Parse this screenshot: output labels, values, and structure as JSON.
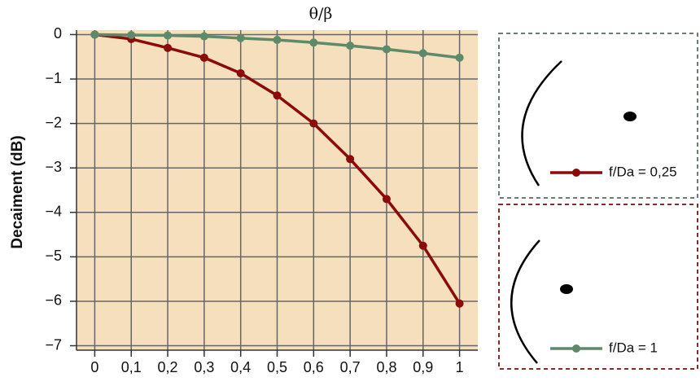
{
  "chart_data": {
    "type": "line",
    "title": "θ/β",
    "y_label": "Decaiment (dB)",
    "x": [
      0,
      0.1,
      0.2,
      0.3,
      0.4,
      0.5,
      0.6,
      0.7,
      0.8,
      0.9,
      1
    ],
    "series": [
      {
        "name": "f/Da = 0,25",
        "color": "#8b0a0a",
        "values": [
          0,
          -0.1,
          -0.3,
          -0.52,
          -0.87,
          -1.37,
          -2.0,
          -2.8,
          -3.7,
          -4.75,
          -6.05
        ]
      },
      {
        "name": "f/Da = 1",
        "color": "#5e8a6a",
        "values": [
          0,
          -0.01,
          -0.02,
          -0.04,
          -0.08,
          -0.12,
          -0.18,
          -0.25,
          -0.33,
          -0.42,
          -0.52
        ]
      }
    ],
    "xlim": [
      -0.05,
      1.05
    ],
    "ylim": [
      -7.1,
      0.1
    ],
    "xticks": [
      0,
      {
        "value": 0.1,
        "label": "0,1"
      },
      {
        "value": 0.2,
        "label": "0,2"
      },
      {
        "value": 0.3,
        "label": "0,3"
      },
      {
        "value": 0.4,
        "label": "0,4"
      },
      {
        "value": 0.5,
        "label": "0,5"
      },
      {
        "value": 0.6,
        "label": "0,6"
      },
      {
        "value": 0.7,
        "label": "0,7"
      },
      {
        "value": 0.8,
        "label": "0,8"
      },
      {
        "value": 0.9,
        "label": "0,9"
      },
      1
    ],
    "yticks": [
      0,
      {
        "value": -1,
        "label": "−1"
      },
      {
        "value": -2,
        "label": "−2"
      },
      {
        "value": -3,
        "label": "−3"
      },
      {
        "value": -4,
        "label": "−4"
      },
      {
        "value": -5,
        "label": "−5"
      },
      {
        "value": -6,
        "label": "−6"
      },
      {
        "value": -7,
        "label": "−7"
      }
    ],
    "grid": true,
    "background": "#f5dfbd"
  }
}
